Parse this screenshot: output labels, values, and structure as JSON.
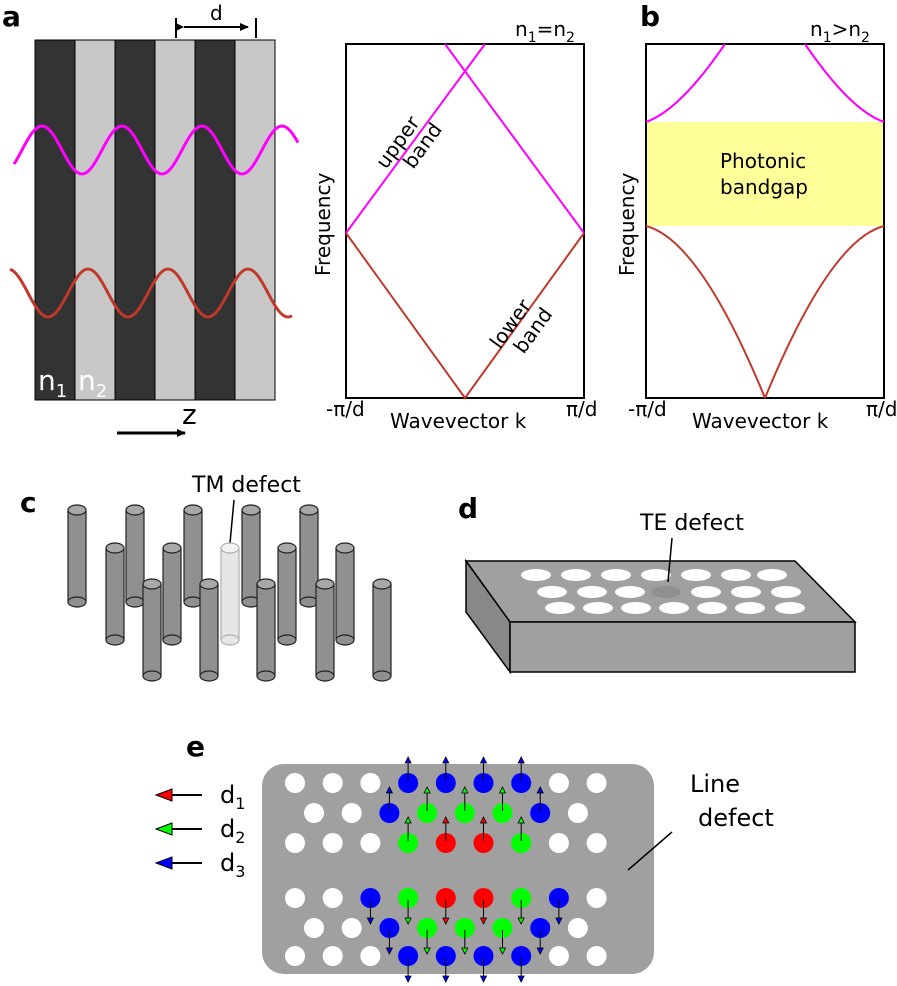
{
  "panels": {
    "a": {
      "letter": "a",
      "d": "d",
      "n1": "n",
      "n1_sub": "1",
      "n2": "n",
      "n2_sub": "2",
      "z": "z"
    },
    "a_plot": {
      "cond_n": "n",
      "cond_sub1": "1",
      "cond_eq": "=n",
      "cond_sub2": "2",
      "ylabel": "Frequency",
      "xlabel": "Wavevector k",
      "x_left": "-π/d",
      "x_right": "π/d",
      "upper_1": "upper",
      "upper_2": "band",
      "lower_1": "lower",
      "lower_2": "band"
    },
    "b": {
      "letter": "b",
      "cond_n": "n",
      "cond_sub1": "1",
      "cond_gt": ">n",
      "cond_sub2": "2",
      "ylabel": "Frequency",
      "xlabel": "Wavevector k",
      "x_left": "-π/d",
      "x_right": "π/d",
      "gap_1": "Photonic",
      "gap_2": "bandgap",
      "gap_color": "#ffff99"
    },
    "c": {
      "letter": "c",
      "defect": "TM defect"
    },
    "d": {
      "letter": "d",
      "defect": "TE defect"
    },
    "e": {
      "letter": "e",
      "legend": [
        {
          "d": "d",
          "sub": "1",
          "color": "#ff0000"
        },
        {
          "d": "d",
          "sub": "2",
          "color": "#00ff00"
        },
        {
          "d": "d",
          "sub": "3",
          "color": "#0000ff"
        }
      ],
      "line_1": "Line",
      "line_2": "defect"
    }
  },
  "colors": {
    "magenta": "#ff00ff",
    "brown": "#c0392b",
    "dark_layer": "#333333",
    "light_layer": "#c8c8c8",
    "gray": "#a0a0a0"
  }
}
